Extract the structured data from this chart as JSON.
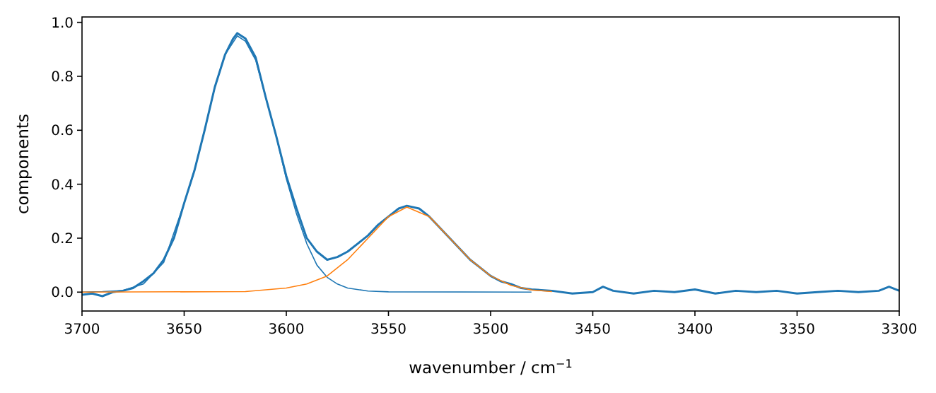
{
  "chart_data": {
    "type": "line",
    "xlabel": "wavenumber / cm$^{−1}$",
    "ylabel": "components",
    "xlim": [
      3700,
      3300
    ],
    "ylim": [
      -0.07,
      1.02
    ],
    "xticks": [
      3700,
      3650,
      3600,
      3550,
      3500,
      3450,
      3400,
      3350,
      3300
    ],
    "yticks": [
      {
        "value": 0,
        "label": "0.0"
      },
      {
        "value": 0.2,
        "label": "0.2"
      },
      {
        "value": 0.4,
        "label": "0.4"
      },
      {
        "value": 0.6,
        "label": "0.6"
      },
      {
        "value": 0.8,
        "label": "0.8"
      },
      {
        "value": 1,
        "label": "1.0"
      }
    ],
    "grid": false,
    "marker": "none",
    "line_style": "solid",
    "series": [
      {
        "color": "#1f77b4",
        "x": [
          3700,
          3695,
          3690,
          3685,
          3680,
          3675,
          3670,
          3665,
          3660,
          3655,
          3650,
          3645,
          3640,
          3635,
          3630,
          3626,
          3624,
          3620,
          3615,
          3610,
          3605,
          3600,
          3595,
          3590,
          3585,
          3580,
          3575,
          3570,
          3565,
          3560,
          3555,
          3550,
          3545,
          3541,
          3535,
          3530,
          3525,
          3520,
          3515,
          3510,
          3505,
          3500,
          3495,
          3490,
          3485,
          3480,
          3470,
          3460,
          3450,
          3445,
          3440,
          3430,
          3420,
          3410,
          3400,
          3390,
          3380,
          3370,
          3360,
          3350,
          3340,
          3330,
          3320,
          3310,
          3305,
          3300
        ],
        "values": [
          -0.01,
          -0.005,
          -0.015,
          0.0,
          0.005,
          0.015,
          0.04,
          0.07,
          0.12,
          0.2,
          0.33,
          0.45,
          0.6,
          0.76,
          0.88,
          0.94,
          0.96,
          0.94,
          0.87,
          0.72,
          0.58,
          0.43,
          0.31,
          0.2,
          0.15,
          0.12,
          0.13,
          0.15,
          0.18,
          0.21,
          0.25,
          0.28,
          0.31,
          0.32,
          0.31,
          0.28,
          0.24,
          0.2,
          0.16,
          0.12,
          0.09,
          0.06,
          0.04,
          0.03,
          0.015,
          0.01,
          0.005,
          -0.005,
          0.0,
          0.02,
          0.005,
          -0.005,
          0.005,
          0.0,
          0.01,
          -0.005,
          0.005,
          0.0,
          0.005,
          -0.005,
          0.0,
          0.005,
          0.0,
          0.005,
          0.02,
          0.005
        ]
      },
      {
        "color": "#1f77b4",
        "x": [
          3700,
          3690,
          3680,
          3670,
          3660,
          3650,
          3645,
          3640,
          3635,
          3630,
          3624,
          3620,
          3615,
          3610,
          3605,
          3600,
          3595,
          3590,
          3585,
          3580,
          3575,
          3570,
          3560,
          3550,
          3480
        ],
        "values": [
          0,
          0.002,
          0.006,
          0.03,
          0.11,
          0.33,
          0.45,
          0.6,
          0.76,
          0.88,
          0.95,
          0.93,
          0.86,
          0.72,
          0.58,
          0.42,
          0.29,
          0.18,
          0.1,
          0.055,
          0.03,
          0.015,
          0.004,
          0.001,
          0
        ]
      },
      {
        "color": "#ff7f0e",
        "x": [
          3700,
          3620,
          3600,
          3590,
          3580,
          3570,
          3560,
          3550,
          3541,
          3530,
          3520,
          3510,
          3500,
          3490,
          3480,
          3470
        ],
        "values": [
          0,
          0.002,
          0.015,
          0.03,
          0.06,
          0.12,
          0.2,
          0.28,
          0.315,
          0.28,
          0.2,
          0.12,
          0.06,
          0.025,
          0.008,
          0.002
        ]
      }
    ]
  }
}
